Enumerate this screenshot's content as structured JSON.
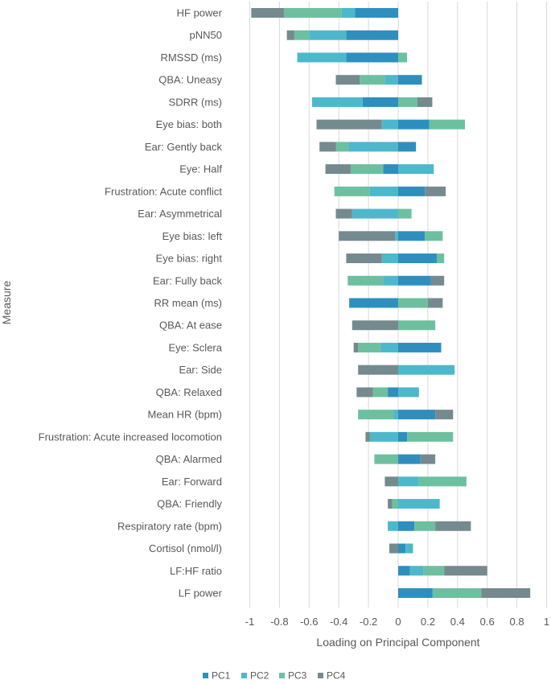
{
  "chart_data": {
    "type": "bar",
    "orientation": "horizontal",
    "stacked": "diverging",
    "title": "",
    "xlabel": "Loading on Principal Component",
    "ylabel": "Measure",
    "xlim": [
      -1,
      1
    ],
    "xticks": [
      -1,
      -0.8,
      -0.6,
      -0.4,
      -0.2,
      0,
      0.2,
      0.4,
      0.6,
      0.8,
      1
    ],
    "grid": true,
    "legend_position": "bottom",
    "categories": [
      "HF power",
      "pNN50",
      "RMSSD (ms)",
      "QBA: Uneasy",
      "SDRR (ms)",
      "Eye bias: both",
      "Ear: Gently back",
      "Eye: Half",
      "Frustration: Acute conflict",
      "Ear: Asymmetrical",
      "Eye bias: left",
      "Eye bias: right",
      "Ear: Fully back",
      "RR mean (ms)",
      "QBA: At ease",
      "Eye: Sclera",
      "Ear: Side",
      "QBA: Relaxed",
      "Mean HR (bpm)",
      "Frustration: Acute increased locomotion",
      "QBA: Alarmed",
      "Ear: Forward",
      "QBA: Friendly",
      "Respiratory rate (bpm)",
      "Cortisol (nmol/l)",
      "LF:HF ratio",
      "LF power"
    ],
    "series": [
      {
        "name": "PC1",
        "color": "#2E8FBE",
        "values": [
          -0.29,
          -0.35,
          -0.35,
          0.16,
          -0.24,
          0.21,
          0.12,
          -0.1,
          0.18,
          0.0,
          0.18,
          0.26,
          0.22,
          -0.33,
          0.0,
          0.29,
          0.0,
          -0.07,
          0.25,
          0.06,
          0.15,
          0.0,
          0.0,
          0.11,
          0.05,
          0.08,
          0.23
        ]
      },
      {
        "name": "PC2",
        "color": "#4DB8CC",
        "values": [
          -0.09,
          -0.25,
          -0.33,
          -0.09,
          -0.34,
          -0.11,
          -0.34,
          0.24,
          -0.19,
          -0.31,
          -0.02,
          -0.11,
          -0.1,
          0.0,
          0.0,
          -0.12,
          0.38,
          0.14,
          -0.03,
          -0.19,
          0.0,
          0.14,
          0.28,
          -0.07,
          0.05,
          0.09,
          0.01
        ]
      },
      {
        "name": "PC3",
        "color": "#6CC0A0",
        "values": [
          -0.39,
          -0.1,
          0.06,
          -0.17,
          0.13,
          0.24,
          -0.08,
          -0.22,
          -0.24,
          0.09,
          0.12,
          0.05,
          -0.24,
          0.2,
          0.25,
          -0.15,
          0.0,
          -0.1,
          -0.24,
          0.31,
          -0.16,
          0.32,
          -0.04,
          0.14,
          0.0,
          0.14,
          0.32
        ]
      },
      {
        "name": "PC4",
        "color": "#758A8E",
        "values": [
          -0.22,
          -0.05,
          0.0,
          -0.16,
          0.1,
          -0.44,
          -0.11,
          -0.17,
          0.14,
          -0.11,
          -0.38,
          -0.24,
          0.09,
          0.1,
          -0.31,
          -0.03,
          -0.27,
          -0.11,
          0.12,
          -0.03,
          0.1,
          -0.09,
          -0.03,
          0.24,
          -0.06,
          0.29,
          0.33
        ]
      }
    ]
  }
}
